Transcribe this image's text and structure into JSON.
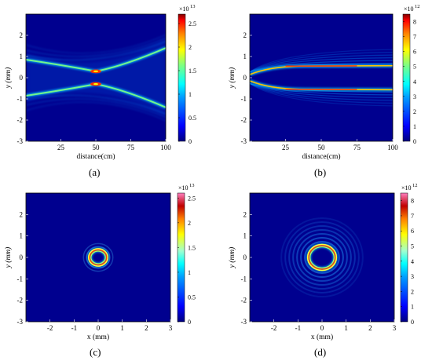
{
  "colors": {
    "background": "#ffffff",
    "plot_bg": "#00008f",
    "colormap": [
      "#00007f",
      "#0000ff",
      "#00a0ff",
      "#00ffff",
      "#80ff80",
      "#ffff00",
      "#ff8000",
      "#ff0000",
      "#800000"
    ],
    "colormap_cd": [
      "#00007f",
      "#0000ff",
      "#00a0ff",
      "#00ffff",
      "#80ffb0",
      "#ffff00",
      "#ff8000",
      "#c00000",
      "#ff80c0"
    ]
  },
  "chart_data": [
    {
      "panel": "(a)",
      "type": "heatmap",
      "xlabel": "distance(cm)",
      "ylabel": "y (mm)",
      "xticks": [
        "25",
        "50",
        "75",
        "100"
      ],
      "yticks": [
        "2",
        "1",
        "0",
        "-1",
        "-2",
        "-3"
      ],
      "xlim": [
        0,
        100
      ],
      "ylim": [
        -3,
        3
      ],
      "colorbar": {
        "exponent": "×10",
        "power": "13",
        "ticks": [
          "2.5",
          "2",
          "1.5",
          "1",
          "0.5",
          "0"
        ],
        "max": 2.7
      },
      "description_value": {
        "focus_distance_cm": 50,
        "ring_radius_mm_start": 0.85,
        "ring_radius_mm_focus": 0.3
      }
    },
    {
      "panel": "(b)",
      "type": "heatmap",
      "xlabel": "distance(cm)",
      "ylabel": "y (mm)",
      "xticks": [
        "25",
        "50",
        "75",
        "100"
      ],
      "yticks": [
        "2",
        "1",
        "0",
        "-1",
        "-2",
        "-3"
      ],
      "xlim": [
        0,
        100
      ],
      "ylim": [
        -3,
        3
      ],
      "colorbar": {
        "exponent": "×10",
        "power": "12",
        "ticks": [
          "8",
          "7",
          "6",
          "5",
          "4",
          "3",
          "2",
          "1",
          "0"
        ],
        "max": 8.5
      },
      "description_value": {
        "ring_radius_mm": 0.55
      }
    },
    {
      "panel": "(c)",
      "type": "heatmap",
      "xlabel": "x (mm)",
      "ylabel": "y (mm)",
      "xticks": [
        "-2",
        "-1",
        "0",
        "1",
        "2",
        "3"
      ],
      "yticks": [
        "2",
        "1",
        "0",
        "-1",
        "-2",
        "-3"
      ],
      "xlim": [
        -3,
        3
      ],
      "ylim": [
        -3,
        3
      ],
      "colorbar": {
        "exponent": "×10",
        "power": "13",
        "ticks": [
          "2.5",
          "2",
          "1.5",
          "1",
          "0.5",
          "0"
        ],
        "max": 2.6
      },
      "description_value": {
        "ring_radius_mm": 0.35
      }
    },
    {
      "panel": "(d)",
      "type": "heatmap",
      "xlabel": "x (mm)",
      "ylabel": "y (mm)",
      "xticks": [
        "-2",
        "-1",
        "0",
        "1",
        "2",
        "3"
      ],
      "yticks": [
        "2",
        "1",
        "0",
        "-1",
        "-2",
        "-3"
      ],
      "xlim": [
        -3,
        3
      ],
      "ylim": [
        -3,
        3
      ],
      "colorbar": {
        "exponent": "×10",
        "power": "12",
        "ticks": [
          "8",
          "7",
          "6",
          "5",
          "4",
          "3",
          "2",
          "1",
          "0"
        ],
        "max": 8.5
      },
      "description_value": {
        "ring_radius_mm": 0.55
      }
    }
  ]
}
